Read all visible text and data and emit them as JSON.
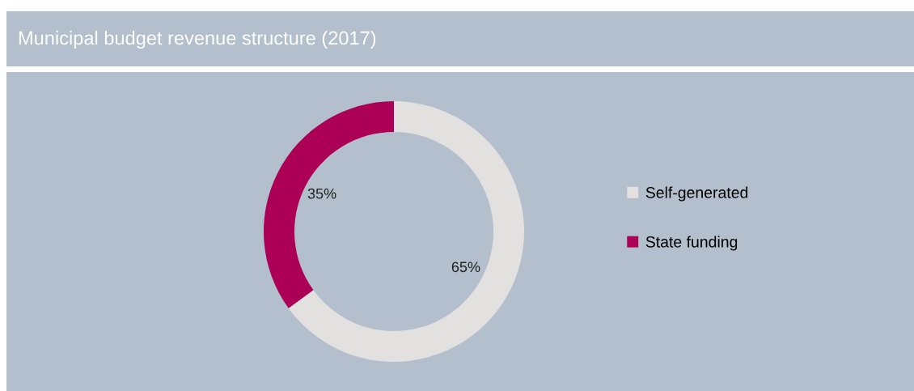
{
  "chart_data": {
    "type": "donut",
    "title": "Municipal budget revenue structure (2017)",
    "categories": [
      "Self-generated",
      "State funding"
    ],
    "values": [
      65,
      35
    ],
    "colors": [
      "#e3e1df",
      "#ab0055"
    ],
    "value_labels": [
      "65%",
      "35%"
    ],
    "legend": "right"
  }
}
